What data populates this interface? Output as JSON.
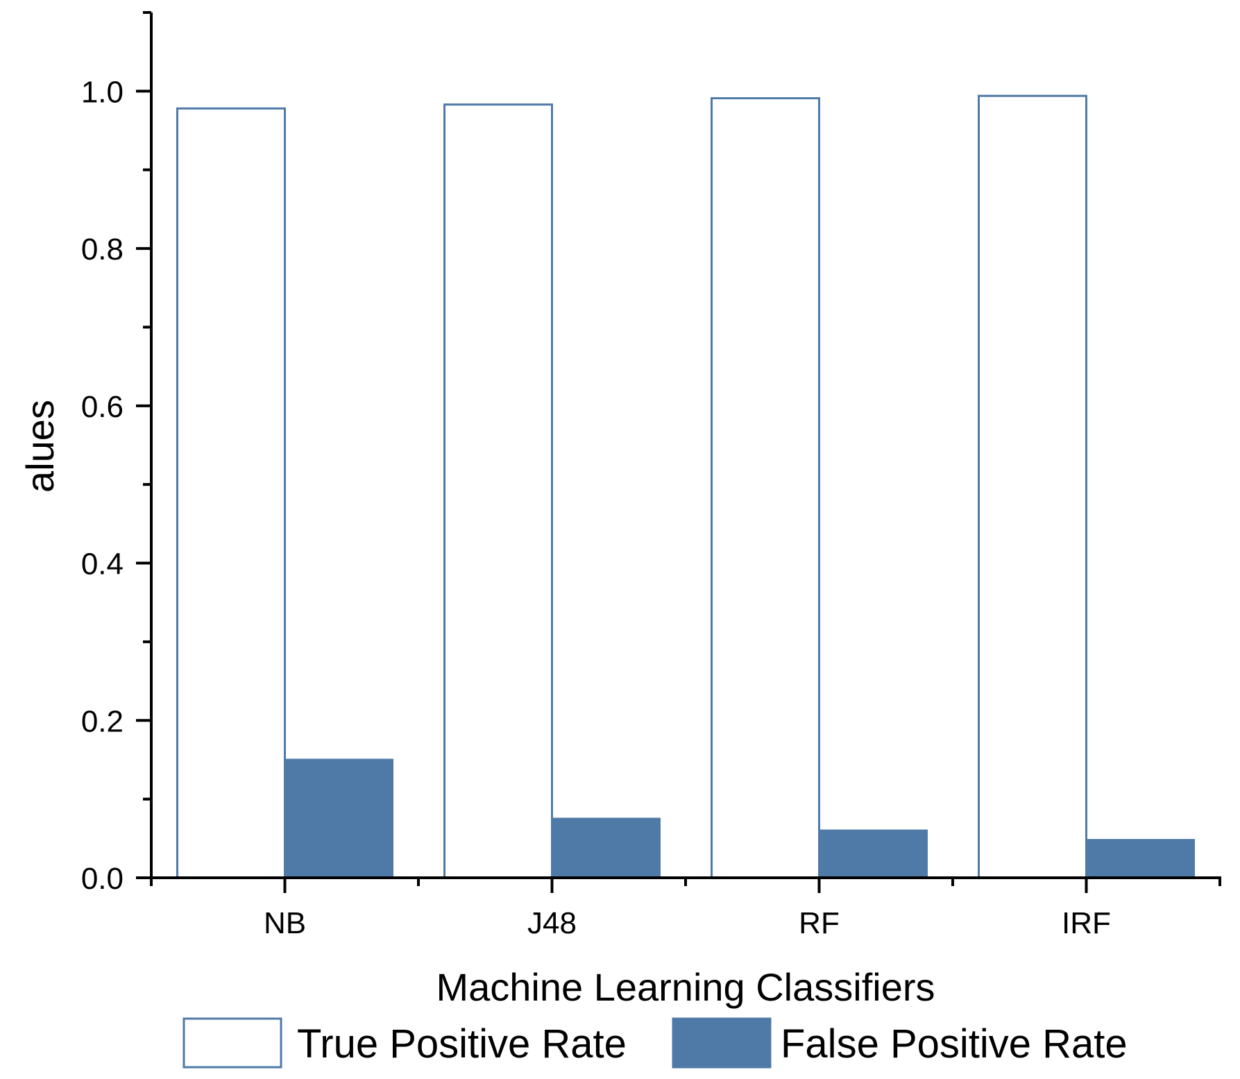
{
  "chart_data": {
    "type": "bar",
    "categories": [
      "NB",
      "J48",
      "RF",
      "IRF"
    ],
    "series": [
      {
        "name": "True Positive Rate",
        "values": [
          0.978,
          0.983,
          0.991,
          0.994
        ],
        "fill": "#ffffff",
        "stroke": "#4f7aa7"
      },
      {
        "name": "False Positive Rate",
        "values": [
          0.15,
          0.075,
          0.06,
          0.048
        ],
        "fill": "#4f7aa7",
        "stroke": "#4f7aa7"
      }
    ],
    "title": "",
    "xlabel": "Machine Learning Classifiers",
    "ylabel": "alues",
    "ylim": [
      0,
      1.1
    ],
    "yticks": [
      "0.0",
      "0.2",
      "0.4",
      "0.6",
      "0.8",
      "1.0"
    ],
    "ytick_values": [
      0,
      0.2,
      0.4,
      0.6,
      0.8,
      1.0
    ],
    "grid": false,
    "legend_position": "bottom"
  }
}
